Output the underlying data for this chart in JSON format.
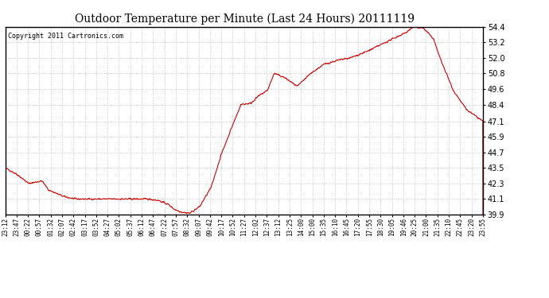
{
  "title": "Outdoor Temperature per Minute (Last 24 Hours) 20111119",
  "copyright": "Copyright 2011 Cartronics.com",
  "line_color": "#cc0000",
  "background_color": "#ffffff",
  "grid_color": "#bbbbbb",
  "yticks": [
    39.9,
    41.1,
    42.3,
    43.5,
    44.7,
    45.9,
    47.1,
    48.4,
    49.6,
    50.8,
    52.0,
    53.2,
    54.4
  ],
  "ymin": 39.9,
  "ymax": 54.4,
  "xtick_labels": [
    "23:12",
    "23:47",
    "00:22",
    "00:57",
    "01:32",
    "02:07",
    "02:42",
    "03:17",
    "03:52",
    "04:27",
    "05:02",
    "05:37",
    "06:12",
    "06:47",
    "07:22",
    "07:57",
    "08:32",
    "09:07",
    "09:42",
    "10:17",
    "10:52",
    "11:27",
    "12:02",
    "12:37",
    "13:12",
    "13:25",
    "14:00",
    "15:00",
    "15:35",
    "16:10",
    "16:45",
    "17:20",
    "17:55",
    "18:30",
    "19:05",
    "19:46",
    "20:25",
    "21:00",
    "21:35",
    "22:10",
    "22:45",
    "23:20",
    "23:55"
  ],
  "anchors_x": [
    0,
    35,
    70,
    110,
    130,
    175,
    210,
    250,
    310,
    355,
    390,
    430,
    460,
    490,
    510,
    530,
    555,
    585,
    620,
    650,
    680,
    710,
    740,
    760,
    790,
    810,
    840,
    880,
    920,
    960,
    1000,
    1040,
    1090,
    1130,
    1170,
    1210,
    1230,
    1260,
    1290,
    1310,
    1350,
    1390,
    1440
  ],
  "anchors_y": [
    43.5,
    43.0,
    42.3,
    42.5,
    41.8,
    41.3,
    41.1,
    41.1,
    41.1,
    41.1,
    41.1,
    41.1,
    41.0,
    40.7,
    40.3,
    40.1,
    40.0,
    40.5,
    42.0,
    44.5,
    46.5,
    48.4,
    48.5,
    49.0,
    49.5,
    50.8,
    50.5,
    49.8,
    50.8,
    51.5,
    51.8,
    52.0,
    52.5,
    53.0,
    53.5,
    54.0,
    54.4,
    54.3,
    53.5,
    52.0,
    49.5,
    48.0,
    47.1
  ]
}
